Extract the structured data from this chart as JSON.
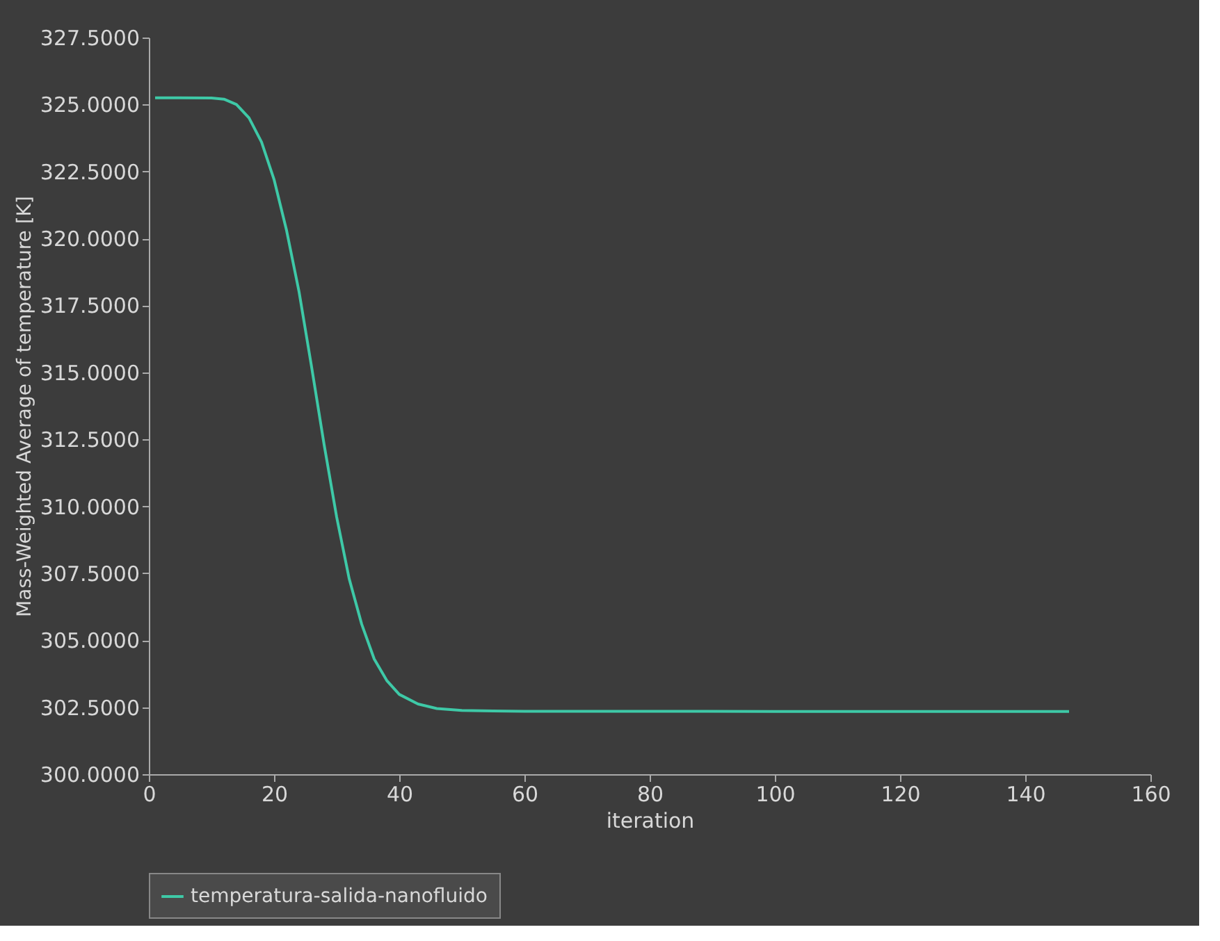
{
  "chart_data": {
    "type": "line",
    "xlabel": "iteration",
    "ylabel": "Mass-Weighted Average of temperature [K]",
    "xlim": [
      0,
      160
    ],
    "xticks": [
      0,
      20,
      40,
      60,
      80,
      100,
      120,
      140,
      160
    ],
    "ylim": [
      300,
      327.5
    ],
    "yticks": [
      {
        "value": 300,
        "label": "300.0000"
      },
      {
        "value": 302.5,
        "label": "302.5000"
      },
      {
        "value": 305,
        "label": "305.0000"
      },
      {
        "value": 307.5,
        "label": "307.5000"
      },
      {
        "value": 310,
        "label": "310.0000"
      },
      {
        "value": 312.5,
        "label": "312.5000"
      },
      {
        "value": 315,
        "label": "315.0000"
      },
      {
        "value": 317.5,
        "label": "317.5000"
      },
      {
        "value": 320,
        "label": "320.0000"
      },
      {
        "value": 322.5,
        "label": "322.5000"
      },
      {
        "value": 325,
        "label": "325.0000"
      },
      {
        "value": 327.5,
        "label": "327.5000"
      }
    ],
    "grid": false,
    "legend": "bottom",
    "marker": "none",
    "line_style": "solid",
    "series": [
      {
        "name": "temperatura-salida-nanofluido",
        "color": "#3ec9a7",
        "x": [
          1,
          5,
          10,
          12,
          14,
          16,
          18,
          20,
          22,
          24,
          26,
          28,
          30,
          32,
          34,
          36,
          38,
          40,
          43,
          46,
          50,
          55,
          60,
          80,
          100,
          120,
          147
        ],
        "values": [
          325.25,
          325.25,
          325.24,
          325.2,
          325.0,
          324.5,
          323.6,
          322.2,
          320.3,
          318.0,
          315.2,
          312.3,
          309.6,
          307.3,
          305.6,
          304.3,
          303.5,
          302.98,
          302.62,
          302.45,
          302.38,
          302.36,
          302.35,
          302.35,
          302.34,
          302.34,
          302.34
        ]
      }
    ]
  }
}
